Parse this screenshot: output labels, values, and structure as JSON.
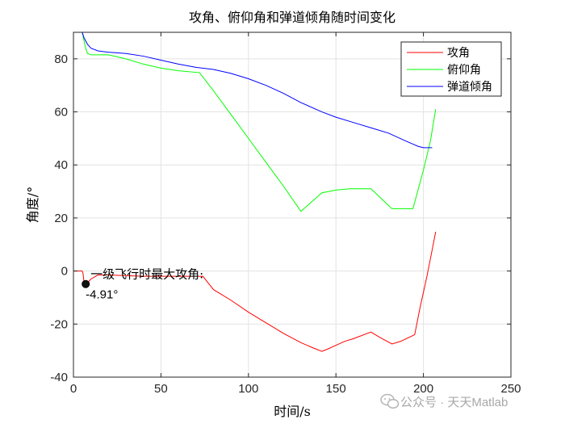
{
  "chart_data": {
    "type": "line",
    "title": "攻角、俯仰角和弹道倾角随时间变化",
    "xlabel": "时间/s",
    "ylabel": "角度/°",
    "xlim": [
      0,
      250
    ],
    "ylim": [
      -40,
      90
    ],
    "xticks": [
      0,
      50,
      100,
      150,
      200,
      250
    ],
    "yticks": [
      -40,
      -20,
      0,
      20,
      40,
      60,
      80
    ],
    "grid": true,
    "legend_position": "top-right",
    "series": [
      {
        "name": "攻角",
        "color": "#ff0000",
        "points": [
          [
            0,
            0
          ],
          [
            5,
            0
          ],
          [
            5.5,
            -1
          ],
          [
            6,
            -4
          ],
          [
            7,
            -4.91
          ],
          [
            8,
            -4.4
          ],
          [
            10,
            -3
          ],
          [
            14,
            -1.5
          ],
          [
            20,
            -1.5
          ],
          [
            40,
            -2
          ],
          [
            60,
            -2
          ],
          [
            70,
            -2
          ],
          [
            74,
            -2
          ],
          [
            80,
            -7
          ],
          [
            90,
            -11
          ],
          [
            100,
            -15.5
          ],
          [
            110,
            -19.5
          ],
          [
            120,
            -23.5
          ],
          [
            130,
            -27
          ],
          [
            137,
            -29
          ],
          [
            142,
            -30.3
          ],
          [
            145,
            -29.5
          ],
          [
            150,
            -28
          ],
          [
            155,
            -26.5
          ],
          [
            160,
            -25.5
          ],
          [
            170,
            -23
          ],
          [
            175,
            -25
          ],
          [
            182,
            -27.5
          ],
          [
            187,
            -26.5
          ],
          [
            195,
            -24
          ],
          [
            198,
            -14
          ],
          [
            202,
            -2
          ],
          [
            205,
            8
          ],
          [
            207,
            14.8
          ]
        ]
      },
      {
        "name": "俯仰角",
        "color": "#00ff00",
        "points": [
          [
            0,
            90
          ],
          [
            5,
            90
          ],
          [
            6,
            87
          ],
          [
            7,
            84
          ],
          [
            8,
            82
          ],
          [
            10,
            81.5
          ],
          [
            20,
            81.5
          ],
          [
            30,
            80
          ],
          [
            40,
            78
          ],
          [
            50,
            76.5
          ],
          [
            60,
            75.5
          ],
          [
            72,
            74.8
          ],
          [
            80,
            68
          ],
          [
            90,
            59
          ],
          [
            100,
            50
          ],
          [
            110,
            41
          ],
          [
            120,
            32
          ],
          [
            130,
            22.5
          ],
          [
            142,
            29.5
          ],
          [
            146,
            30
          ],
          [
            150,
            30.5
          ],
          [
            158,
            31
          ],
          [
            170,
            31
          ],
          [
            182,
            23.5
          ],
          [
            194,
            23.5
          ],
          [
            200,
            38
          ],
          [
            204,
            49
          ],
          [
            207,
            61
          ]
        ]
      },
      {
        "name": "弹道倾角",
        "color": "#0000ff",
        "points": [
          [
            0,
            90
          ],
          [
            5,
            90
          ],
          [
            6,
            88
          ],
          [
            8,
            85.5
          ],
          [
            10,
            84
          ],
          [
            14,
            83
          ],
          [
            20,
            82.5
          ],
          [
            30,
            82
          ],
          [
            40,
            81
          ],
          [
            50,
            79.5
          ],
          [
            60,
            78
          ],
          [
            70,
            76.8
          ],
          [
            80,
            76
          ],
          [
            90,
            74.5
          ],
          [
            100,
            72.5
          ],
          [
            110,
            70
          ],
          [
            120,
            67
          ],
          [
            130,
            63.5
          ],
          [
            142,
            60
          ],
          [
            150,
            58
          ],
          [
            160,
            56
          ],
          [
            170,
            54
          ],
          [
            180,
            52
          ],
          [
            190,
            49
          ],
          [
            197,
            47
          ],
          [
            200,
            46.5
          ],
          [
            205,
            46.5
          ]
        ]
      }
    ],
    "annotation": {
      "x": 7,
      "y": -4.91,
      "label": "一级飞行时最大攻角:",
      "value": "-4.91°"
    }
  },
  "watermark": "公众号 · 天天Matlab"
}
